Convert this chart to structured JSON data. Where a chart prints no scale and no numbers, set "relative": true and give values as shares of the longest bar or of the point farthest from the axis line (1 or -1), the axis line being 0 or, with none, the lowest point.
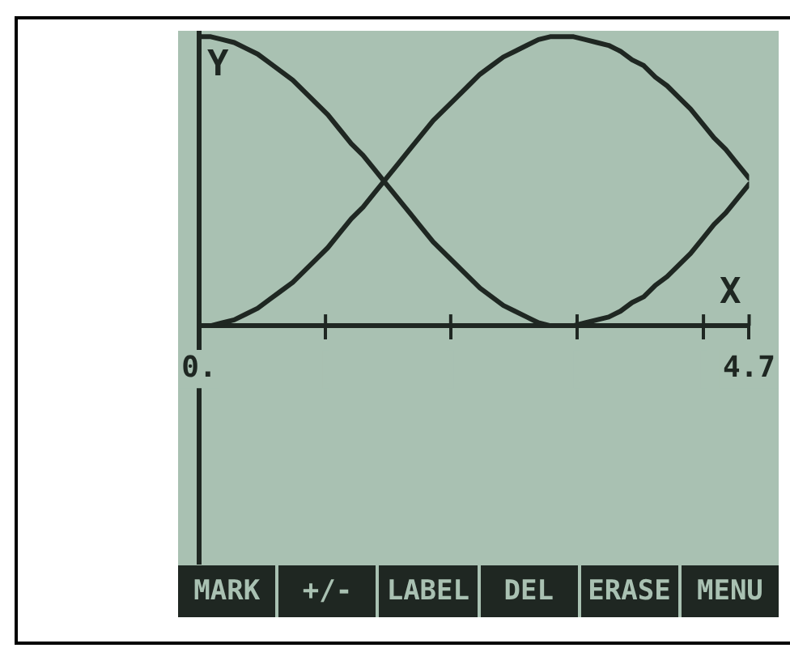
{
  "chart_data": {
    "type": "line",
    "relative": true,
    "xlabel": "X",
    "ylabel": "Y",
    "x": [
      0,
      0.1,
      0.2,
      0.3,
      0.4,
      0.5,
      0.6,
      0.7,
      0.8,
      0.9,
      1,
      1.1,
      1.2,
      1.3,
      1.4,
      1.5,
      1.6,
      1.7,
      1.8,
      1.9,
      2,
      2.1,
      2.2,
      2.3,
      2.4,
      2.5,
      2.6,
      2.7,
      2.8,
      2.9,
      3,
      3.1,
      3.2,
      3.3,
      3.4,
      3.5,
      3.6,
      3.7,
      3.8,
      3.9,
      4,
      4.1,
      4.2,
      4.3,
      4.4,
      4.5,
      4.6,
      4.7
    ],
    "xlim": [
      0,
      4.7
    ],
    "xticks": [
      {
        "value": 0,
        "label": "0."
      },
      {
        "value": 1.08,
        "label": null
      },
      {
        "value": 2.15,
        "label": null
      },
      {
        "value": 3.23,
        "label": null
      },
      {
        "value": 4.31,
        "label": null
      },
      4.7
    ],
    "series": [
      {
        "color": "#1f2722",
        "values": [
          1,
          1,
          0.99,
          0.98,
          0.96,
          0.94,
          0.91,
          0.88,
          0.85,
          0.81,
          0.77,
          0.73,
          0.68,
          0.63,
          0.59,
          0.54,
          0.49,
          0.44,
          0.39,
          0.34,
          0.29,
          0.25,
          0.21,
          0.17,
          0.13,
          0.1,
          0.07,
          0.05,
          0.03,
          0.01,
          0,
          0,
          0,
          0.01,
          0.02,
          0.03,
          0.05,
          0.08,
          0.1,
          0.14,
          0.17,
          0.21,
          0.25,
          0.3,
          0.35,
          0.39,
          0.44,
          0.49
        ]
      },
      {
        "color": "#1f2722",
        "values": [
          0,
          0,
          0.01,
          0.02,
          0.04,
          0.06,
          0.09,
          0.12,
          0.15,
          0.19,
          0.23,
          0.27,
          0.32,
          0.37,
          0.41,
          0.46,
          0.51,
          0.56,
          0.61,
          0.66,
          0.71,
          0.75,
          0.79,
          0.83,
          0.87,
          0.9,
          0.93,
          0.95,
          0.97,
          0.99,
          1,
          1,
          1,
          0.99,
          0.98,
          0.97,
          0.95,
          0.92,
          0.9,
          0.86,
          0.83,
          0.79,
          0.75,
          0.7,
          0.65,
          0.61,
          0.56,
          0.51
        ]
      }
    ],
    "marker": "none",
    "line_style": "solid",
    "annotations": [
      "MARK",
      "+/-",
      "LABEL",
      "DEL",
      "ERASE",
      "MENU"
    ]
  }
}
